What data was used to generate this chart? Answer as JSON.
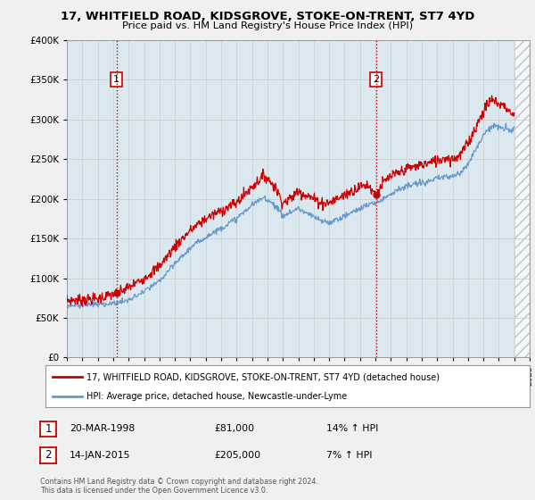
{
  "title": "17, WHITFIELD ROAD, KIDSGROVE, STOKE-ON-TRENT, ST7 4YD",
  "subtitle": "Price paid vs. HM Land Registry's House Price Index (HPI)",
  "legend_label_red": "17, WHITFIELD ROAD, KIDSGROVE, STOKE-ON-TRENT, ST7 4YD (detached house)",
  "legend_label_blue": "HPI: Average price, detached house, Newcastle-under-Lyme",
  "annotation1_label": "1",
  "annotation1_date": "20-MAR-1998",
  "annotation1_price": "£81,000",
  "annotation1_hpi": "14% ↑ HPI",
  "annotation2_label": "2",
  "annotation2_date": "14-JAN-2015",
  "annotation2_price": "£205,000",
  "annotation2_hpi": "7% ↑ HPI",
  "footnote": "Contains HM Land Registry data © Crown copyright and database right 2024.\nThis data is licensed under the Open Government Licence v3.0.",
  "ylim": [
    0,
    400000
  ],
  "yticks": [
    0,
    50000,
    100000,
    150000,
    200000,
    250000,
    300000,
    350000,
    400000
  ],
  "background_color": "#f0f0f0",
  "plot_bg_color": "#dce8f0",
  "plot_bg_color2": "#e8e8e8",
  "red_color": "#cc0000",
  "blue_color": "#6699cc",
  "vline_color": "#cc0000",
  "point1_year": 1998.22,
  "point1_value": 81000,
  "point2_year": 2015.04,
  "point2_value": 205000,
  "xmin": 1995,
  "xmax": 2025,
  "data_end_year": 2024.0,
  "hatch_start": 2024.0
}
